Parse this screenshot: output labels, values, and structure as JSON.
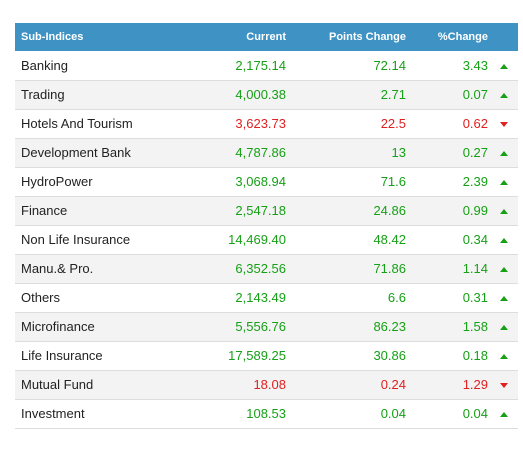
{
  "colors": {
    "header_bg": "#3f93c4",
    "up": "#16a016",
    "down": "#e02020"
  },
  "headers": {
    "name": "Sub-Indices",
    "current": "Current",
    "points_change": "Points Change",
    "pct_change": "%Change"
  },
  "rows": [
    {
      "name": "Banking",
      "current": "2,175.14",
      "points": "72.14",
      "pct": "3.43",
      "direction": "up"
    },
    {
      "name": "Trading",
      "current": "4,000.38",
      "points": "2.71",
      "pct": "0.07",
      "direction": "up"
    },
    {
      "name": "Hotels And Tourism",
      "current": "3,623.73",
      "points": "22.5",
      "pct": "0.62",
      "direction": "down"
    },
    {
      "name": "Development Bank",
      "current": "4,787.86",
      "points": "13",
      "pct": "0.27",
      "direction": "up"
    },
    {
      "name": "HydroPower",
      "current": "3,068.94",
      "points": "71.6",
      "pct": "2.39",
      "direction": "up"
    },
    {
      "name": "Finance",
      "current": "2,547.18",
      "points": "24.86",
      "pct": "0.99",
      "direction": "up"
    },
    {
      "name": "Non Life Insurance",
      "current": "14,469.40",
      "points": "48.42",
      "pct": "0.34",
      "direction": "up"
    },
    {
      "name": "Manu.& Pro.",
      "current": "6,352.56",
      "points": "71.86",
      "pct": "1.14",
      "direction": "up"
    },
    {
      "name": "Others",
      "current": "2,143.49",
      "points": "6.6",
      "pct": "0.31",
      "direction": "up"
    },
    {
      "name": "Microfinance",
      "current": "5,556.76",
      "points": "86.23",
      "pct": "1.58",
      "direction": "up"
    },
    {
      "name": "Life Insurance",
      "current": "17,589.25",
      "points": "30.86",
      "pct": "0.18",
      "direction": "up"
    },
    {
      "name": "Mutual Fund",
      "current": "18.08",
      "points": "0.24",
      "pct": "1.29",
      "direction": "down"
    },
    {
      "name": "Investment",
      "current": "108.53",
      "points": "0.04",
      "pct": "0.04",
      "direction": "up"
    }
  ]
}
